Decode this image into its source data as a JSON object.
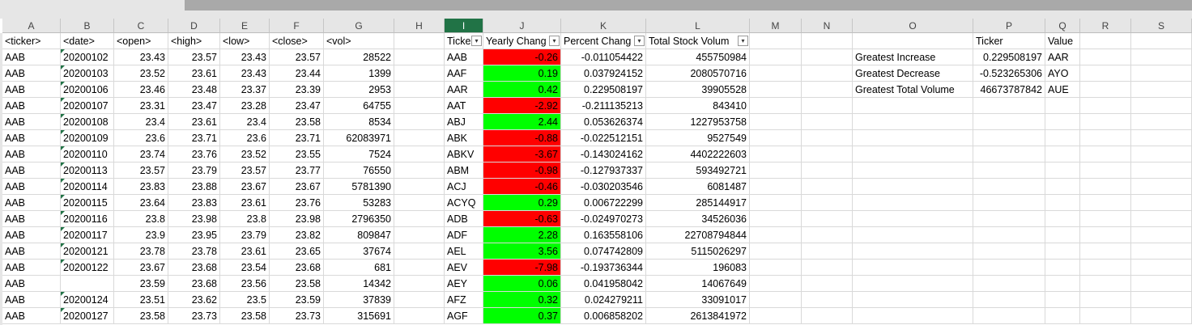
{
  "columns": [
    "A",
    "B",
    "C",
    "D",
    "E",
    "F",
    "G",
    "H",
    "I",
    "J",
    "K",
    "L",
    "M",
    "N",
    "O",
    "P",
    "Q",
    "R",
    "S"
  ],
  "active_column": "I",
  "colors": {
    "positive": "#00ff00",
    "negative": "#ff0000",
    "header_bg": "#e6e6e6",
    "active_header": "#217346"
  },
  "raw_headers": [
    "<ticker>",
    "<date>",
    "<open>",
    "<high>",
    "<low>",
    "<close>",
    "<vol>"
  ],
  "raw_rows": [
    [
      "AAB",
      "20200102",
      "23.43",
      "23.57",
      "23.43",
      "23.57",
      "28522"
    ],
    [
      "AAB",
      "20200103",
      "23.52",
      "23.61",
      "23.43",
      "23.44",
      "1399"
    ],
    [
      "AAB",
      "20200106",
      "23.46",
      "23.48",
      "23.37",
      "23.39",
      "2953"
    ],
    [
      "AAB",
      "20200107",
      "23.31",
      "23.47",
      "23.28",
      "23.47",
      "64755"
    ],
    [
      "AAB",
      "20200108",
      "23.4",
      "23.61",
      "23.4",
      "23.58",
      "8534"
    ],
    [
      "AAB",
      "20200109",
      "23.6",
      "23.71",
      "23.6",
      "23.71",
      "62083971"
    ],
    [
      "AAB",
      "20200110",
      "23.74",
      "23.76",
      "23.52",
      "23.55",
      "7524"
    ],
    [
      "AAB",
      "20200113",
      "23.57",
      "23.79",
      "23.57",
      "23.77",
      "76550"
    ],
    [
      "AAB",
      "20200114",
      "23.83",
      "23.88",
      "23.67",
      "23.67",
      "5781390"
    ],
    [
      "AAB",
      "20200115",
      "23.64",
      "23.83",
      "23.61",
      "23.76",
      "53283"
    ],
    [
      "AAB",
      "20200116",
      "23.8",
      "23.98",
      "23.8",
      "23.98",
      "2796350"
    ],
    [
      "AAB",
      "20200117",
      "23.9",
      "23.95",
      "23.79",
      "23.82",
      "809847"
    ],
    [
      "AAB",
      "20200121",
      "23.78",
      "23.78",
      "23.61",
      "23.65",
      "37674"
    ],
    [
      "AAB",
      "20200122",
      "23.67",
      "23.68",
      "23.54",
      "23.68",
      "681"
    ],
    [
      "AAB",
      "",
      "23.59",
      "23.68",
      "23.56",
      "23.58",
      "14342"
    ],
    [
      "AAB",
      "20200124",
      "23.51",
      "23.62",
      "23.5",
      "23.59",
      "37839"
    ],
    [
      "AAB",
      "20200127",
      "23.58",
      "23.73",
      "23.58",
      "23.73",
      "315691"
    ]
  ],
  "summary_headers": [
    "Ticke",
    "Yearly Chang",
    "Percent Chang",
    "Total Stock Volum"
  ],
  "summary_rows": [
    [
      "AAB",
      "-0.26",
      "-0.011054422",
      "455750984"
    ],
    [
      "AAF",
      "0.19",
      "0.037924152",
      "2080570716"
    ],
    [
      "AAR",
      "0.42",
      "0.229508197",
      "39905528"
    ],
    [
      "AAT",
      "-2.92",
      "-0.211135213",
      "843410"
    ],
    [
      "ABJ",
      "2.44",
      "0.053626374",
      "1227953758"
    ],
    [
      "ABK",
      "-0.88",
      "-0.022512151",
      "9527549"
    ],
    [
      "ABKV",
      "-3.67",
      "-0.143024162",
      "4402222603"
    ],
    [
      "ABM",
      "-0.98",
      "-0.127937337",
      "593492721"
    ],
    [
      "ACJ",
      "-0.46",
      "-0.030203546",
      "6081487"
    ],
    [
      "ACYQ",
      "0.29",
      "0.006722299",
      "285144917"
    ],
    [
      "ADB",
      "-0.63",
      "-0.024970273",
      "34526036"
    ],
    [
      "ADF",
      "2.28",
      "0.163558106",
      "22708794844"
    ],
    [
      "AEL",
      "3.56",
      "0.074742809",
      "5115026297"
    ],
    [
      "AEV",
      "-7.98",
      "-0.193736344",
      "196083"
    ],
    [
      "AEY",
      "0.06",
      "0.041958042",
      "14067649"
    ],
    [
      "AFZ",
      "0.32",
      "0.024279211",
      "33091017"
    ],
    [
      "AGF",
      "0.37",
      "0.006858202",
      "2613841972"
    ]
  ],
  "greatest_headers": [
    "Ticker",
    "Value"
  ],
  "greatest_rows": [
    [
      "Greatest Increase",
      "0.229508197",
      "AAR"
    ],
    [
      "Greatest Decrease",
      "-0.523265306",
      "AYO"
    ],
    [
      "Greatest Total Volume",
      "46673787842",
      "AUE"
    ]
  ]
}
